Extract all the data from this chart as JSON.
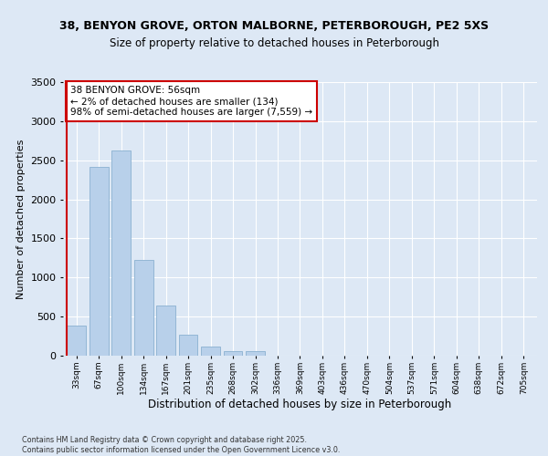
{
  "title1": "38, BENYON GROVE, ORTON MALBORNE, PETERBOROUGH, PE2 5XS",
  "title2": "Size of property relative to detached houses in Peterborough",
  "xlabel": "Distribution of detached houses by size in Peterborough",
  "ylabel": "Number of detached properties",
  "categories": [
    "33sqm",
    "67sqm",
    "100sqm",
    "134sqm",
    "167sqm",
    "201sqm",
    "235sqm",
    "268sqm",
    "302sqm",
    "336sqm",
    "369sqm",
    "403sqm",
    "436sqm",
    "470sqm",
    "504sqm",
    "537sqm",
    "571sqm",
    "604sqm",
    "638sqm",
    "672sqm",
    "705sqm"
  ],
  "values": [
    390,
    2420,
    2620,
    1230,
    640,
    270,
    120,
    60,
    55,
    0,
    0,
    0,
    0,
    0,
    0,
    0,
    0,
    0,
    0,
    0,
    0
  ],
  "bar_color": "#b8d0ea",
  "bar_edge_color": "#8ab0d0",
  "vline_color": "#cc0000",
  "annotation_title": "38 BENYON GROVE: 56sqm",
  "annotation_line1": "← 2% of detached houses are smaller (134)",
  "annotation_line2": "98% of semi-detached houses are larger (7,559) →",
  "annotation_box_color": "#ffffff",
  "annotation_box_edge": "#cc0000",
  "ylim": [
    0,
    3500
  ],
  "yticks": [
    0,
    500,
    1000,
    1500,
    2000,
    2500,
    3000,
    3500
  ],
  "bg_color": "#dde8f5",
  "fig_bg_color": "#dde8f5",
  "footer1": "Contains HM Land Registry data © Crown copyright and database right 2025.",
  "footer2": "Contains public sector information licensed under the Open Government Licence v3.0."
}
